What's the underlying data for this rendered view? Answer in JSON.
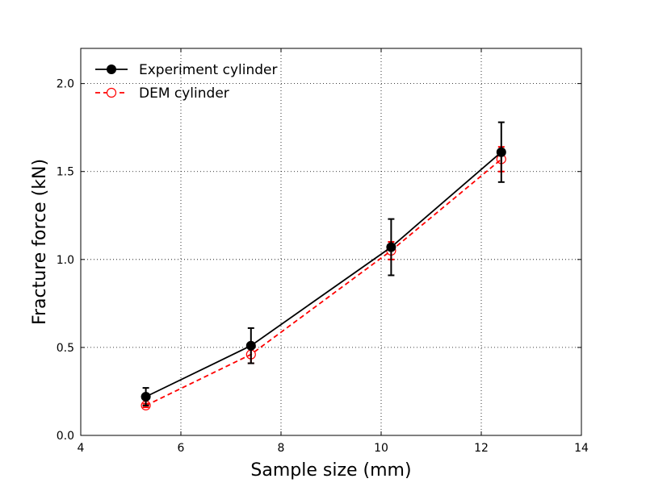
{
  "chart_data": {
    "type": "line",
    "title": "",
    "xlabel": "Sample size (mm)",
    "ylabel": "Fracture force (kN)",
    "xlim": [
      4,
      14
    ],
    "ylim": [
      0,
      2.2
    ],
    "xticks": [
      4,
      6,
      8,
      10,
      12,
      14
    ],
    "yticks": [
      0.0,
      0.5,
      1.0,
      1.5,
      2.0
    ],
    "xtick_labels": [
      "4",
      "6",
      "8",
      "10",
      "12",
      "14"
    ],
    "ytick_labels": [
      "0.0",
      "0.5",
      "1.0",
      "1.5",
      "2.0"
    ],
    "grid": true,
    "legend": "top-left",
    "series": [
      {
        "name": "Experiment cylinder",
        "color": "#000000",
        "line_style": "solid",
        "marker": "filled-circle",
        "x": [
          5.3,
          7.4,
          10.2,
          12.4
        ],
        "y": [
          0.22,
          0.51,
          1.07,
          1.61
        ],
        "yerr": [
          0.05,
          0.1,
          0.16,
          0.17
        ]
      },
      {
        "name": "DEM cylinder",
        "color": "#ff0000",
        "line_style": "dashed",
        "marker": "open-circle",
        "x": [
          5.3,
          7.4,
          10.2,
          12.4
        ],
        "y": [
          0.17,
          0.46,
          1.05,
          1.57
        ],
        "yerr": [
          0.01,
          0.05,
          0.05,
          0.07
        ]
      }
    ]
  }
}
